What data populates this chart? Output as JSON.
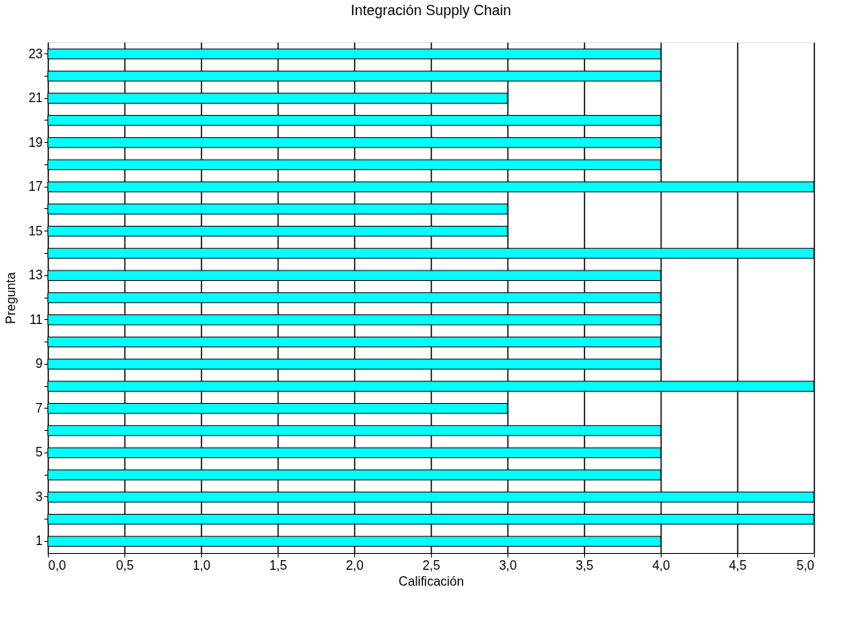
{
  "chart_data": {
    "type": "bar",
    "orientation": "horizontal",
    "title": "Integración Supply Chain",
    "xlabel": "Calificación",
    "ylabel": "Pregunta",
    "categories": [
      "23",
      null,
      "21",
      null,
      "19",
      null,
      "17",
      null,
      "15",
      null,
      "13",
      null,
      "11",
      null,
      "9",
      null,
      "7",
      null,
      "5",
      null,
      "3",
      null,
      "1"
    ],
    "values": [
      4,
      4,
      3,
      4,
      4,
      4,
      5,
      3,
      3,
      5,
      4,
      4,
      4,
      4,
      4,
      5,
      3,
      4,
      4,
      4,
      5,
      5,
      4
    ],
    "color": "#00ffff",
    "xlim": [
      0,
      5
    ],
    "xticks": [
      {
        "value": 0,
        "label": "0,0"
      },
      {
        "value": 0.5,
        "label": "0,5"
      },
      {
        "value": 1,
        "label": "1,0"
      },
      {
        "value": 1.5,
        "label": "1,5"
      },
      {
        "value": 2,
        "label": "2,0"
      },
      {
        "value": 2.5,
        "label": "2,5"
      },
      {
        "value": 3,
        "label": "3,0"
      },
      {
        "value": 3.5,
        "label": "3,5"
      },
      {
        "value": 4,
        "label": "4,0"
      },
      {
        "value": 4.5,
        "label": "4,5"
      },
      {
        "value": 5,
        "label": "5,0"
      }
    ],
    "grid": "x"
  }
}
